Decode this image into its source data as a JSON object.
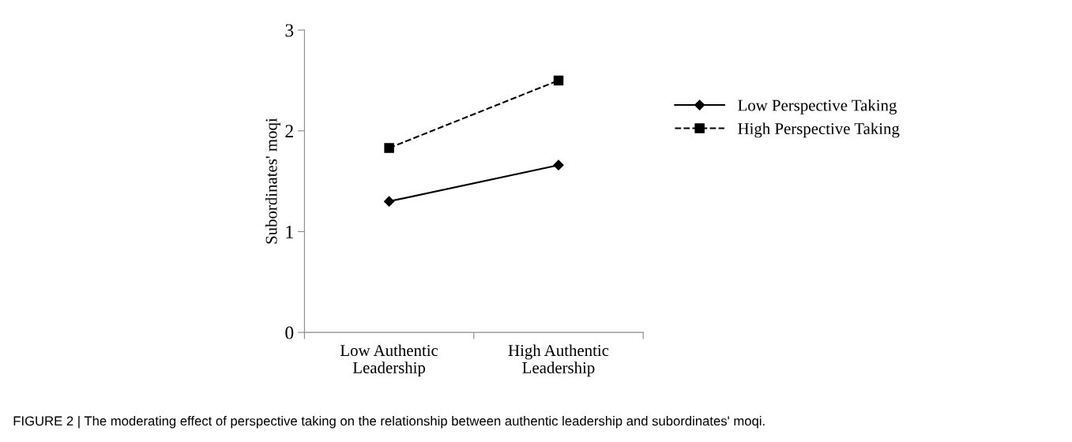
{
  "chart_data": {
    "type": "line",
    "ylabel": "Subordinates' moqi",
    "categories": [
      "Low Authentic Leadership",
      "High Authentic Leadership"
    ],
    "series": [
      {
        "name": "Low Perspective Taking",
        "color": "#000000",
        "values": [
          1.3,
          1.66
        ],
        "marker": "diamond",
        "line_style": "solid"
      },
      {
        "name": "High Perspective Taking",
        "color": "#000000",
        "values": [
          1.83,
          2.5
        ],
        "marker": "square",
        "line_style": "dashed"
      }
    ],
    "ylim": [
      0,
      3
    ],
    "yticks": [
      0,
      1,
      2,
      3
    ],
    "grid": false,
    "legend": "right",
    "annotations": [
      "FIGURE 2 | The moderating effect of perspective taking on the relationship between authentic leadership and subordinates' moqi."
    ]
  }
}
